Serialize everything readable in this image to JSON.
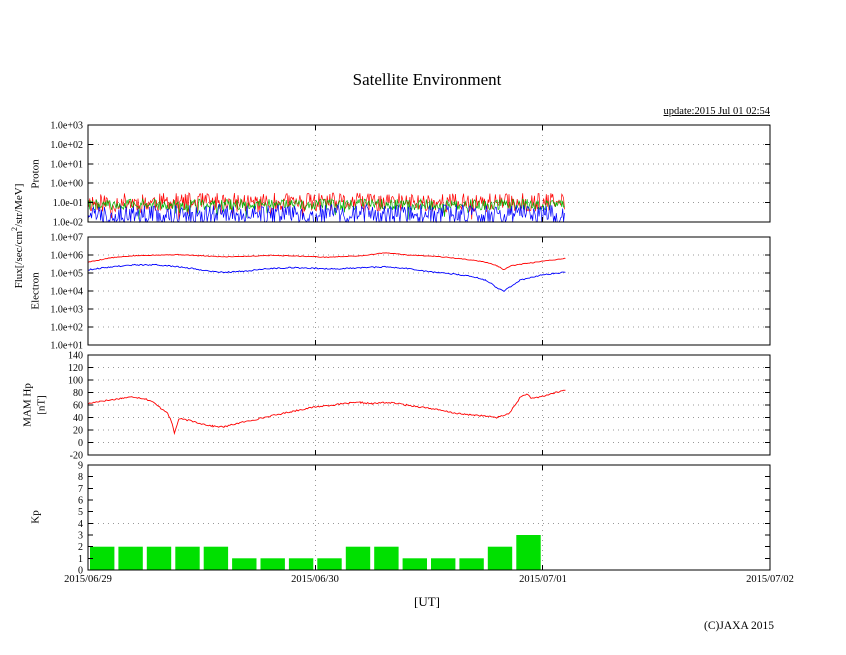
{
  "page": {
    "title": "Satellite Environment",
    "update_text": "update:2015 Jul 01 02:54",
    "copyright": "(C)JAXA 2015",
    "x_axis_title": "[UT]"
  },
  "labels": {
    "flux_pre": "Flux[/sec/cm",
    "flux_sup": "2",
    "flux_post": "/str/MeV]",
    "proton": "Proton",
    "electron": "Electron",
    "mam_line1": "MAM Hp",
    "mam_line2": "[nT]",
    "kp": "Kp"
  },
  "x_axis": {
    "tick_labels": [
      "2015/06/29",
      "2015/06/30",
      "2015/07/01",
      "2015/07/02"
    ],
    "span_days": 3,
    "gridline_days": [
      1,
      2
    ]
  },
  "chart_data": [
    {
      "id": "proton",
      "type": "line",
      "panel_label": "Proton",
      "yscale": "log",
      "ylim": [
        0.01,
        1000
      ],
      "ytick_values": [
        1000,
        100,
        10,
        1,
        0.1,
        0.01
      ],
      "ytick_labels": [
        "1.0e+03",
        "1.0e+02",
        "1.0e+01",
        "1.0e+00",
        "1.0e-01",
        "1.0e-02"
      ],
      "grid_values": [
        100,
        10,
        1,
        0.1
      ],
      "series": [
        {
          "name": "proton-red",
          "color": "#ff0000",
          "style": "noise",
          "x_start": 0,
          "x_end": 2.1,
          "center_log": -1.0,
          "noise_log": 0.5,
          "seed": 11
        },
        {
          "name": "proton-green",
          "color": "#00b400",
          "style": "noise",
          "x_start": 0,
          "x_end": 2.1,
          "center_log": -1.1,
          "noise_log": 0.28,
          "seed": 22
        },
        {
          "name": "proton-blue",
          "color": "#0000ff",
          "style": "noise",
          "x_start": 0,
          "x_end": 2.1,
          "center_log": -1.6,
          "noise_log": 0.5,
          "seed": 33
        }
      ]
    },
    {
      "id": "electron",
      "type": "line",
      "panel_label": "Electron",
      "yscale": "log",
      "ylim": [
        10,
        10000000
      ],
      "ytick_values": [
        10000000,
        1000000,
        100000,
        10000,
        1000,
        100,
        10
      ],
      "ytick_labels": [
        "1.0e+07",
        "1.0e+06",
        "1.0e+05",
        "1.0e+04",
        "1.0e+03",
        "1.0e+02",
        "1.0e+01"
      ],
      "grid_values": [
        1000000,
        100000,
        10000,
        1000,
        100
      ],
      "series": [
        {
          "name": "electron-red",
          "color": "#ff0000",
          "style": "points",
          "wiggle": 0.02,
          "seed": 5,
          "points": [
            [
              0,
              400000
            ],
            [
              0.1,
              700000
            ],
            [
              0.2,
              900000
            ],
            [
              0.3,
              1000000
            ],
            [
              0.4,
              1050000
            ],
            [
              0.5,
              900000
            ],
            [
              0.6,
              800000
            ],
            [
              0.7,
              850000
            ],
            [
              0.8,
              950000
            ],
            [
              0.9,
              900000
            ],
            [
              1.0,
              800000
            ],
            [
              1.05,
              750000
            ],
            [
              1.1,
              800000
            ],
            [
              1.2,
              900000
            ],
            [
              1.3,
              1300000
            ],
            [
              1.35,
              1200000
            ],
            [
              1.4,
              1000000
            ],
            [
              1.5,
              900000
            ],
            [
              1.6,
              700000
            ],
            [
              1.7,
              500000
            ],
            [
              1.75,
              400000
            ],
            [
              1.8,
              250000
            ],
            [
              1.83,
              150000
            ],
            [
              1.86,
              250000
            ],
            [
              1.9,
              300000
            ],
            [
              2.0,
              450000
            ],
            [
              2.1,
              650000
            ]
          ]
        },
        {
          "name": "electron-blue",
          "color": "#0000ff",
          "style": "points",
          "wiggle": 0.035,
          "seed": 9,
          "points": [
            [
              0,
              150000
            ],
            [
              0.1,
              220000
            ],
            [
              0.2,
              280000
            ],
            [
              0.3,
              280000
            ],
            [
              0.4,
              220000
            ],
            [
              0.5,
              150000
            ],
            [
              0.55,
              120000
            ],
            [
              0.6,
              110000
            ],
            [
              0.7,
              130000
            ],
            [
              0.8,
              180000
            ],
            [
              0.9,
              200000
            ],
            [
              1.0,
              180000
            ],
            [
              1.1,
              170000
            ],
            [
              1.2,
              200000
            ],
            [
              1.3,
              220000
            ],
            [
              1.4,
              180000
            ],
            [
              1.5,
              120000
            ],
            [
              1.6,
              90000
            ],
            [
              1.7,
              60000
            ],
            [
              1.75,
              40000
            ],
            [
              1.8,
              15000
            ],
            [
              1.83,
              10000
            ],
            [
              1.86,
              18000
            ],
            [
              1.9,
              40000
            ],
            [
              2.0,
              80000
            ],
            [
              2.1,
              110000
            ]
          ]
        }
      ]
    },
    {
      "id": "mam-hp",
      "type": "line",
      "panel_label": "MAM Hp [nT]",
      "yscale": "linear",
      "ylim": [
        -20,
        140
      ],
      "ytick_values": [
        140,
        120,
        100,
        80,
        60,
        40,
        20,
        0,
        -20
      ],
      "ytick_labels": [
        "140",
        "120",
        "100",
        "80",
        "60",
        "40",
        "20",
        "0",
        "-20"
      ],
      "grid_values": [
        120,
        100,
        80,
        60,
        40,
        20,
        0
      ],
      "series": [
        {
          "name": "hp-red",
          "color": "#ff0000",
          "style": "points",
          "wiggle": 1.2,
          "seed": 17,
          "points": [
            [
              0,
              62
            ],
            [
              0.05,
              66
            ],
            [
              0.1,
              68
            ],
            [
              0.15,
              71
            ],
            [
              0.2,
              73
            ],
            [
              0.25,
              70
            ],
            [
              0.28,
              66
            ],
            [
              0.32,
              55
            ],
            [
              0.35,
              48
            ],
            [
              0.37,
              30
            ],
            [
              0.38,
              15
            ],
            [
              0.4,
              38
            ],
            [
              0.45,
              35
            ],
            [
              0.5,
              30
            ],
            [
              0.55,
              26
            ],
            [
              0.6,
              25
            ],
            [
              0.65,
              30
            ],
            [
              0.7,
              34
            ],
            [
              0.8,
              42
            ],
            [
              0.9,
              50
            ],
            [
              1.0,
              57
            ],
            [
              1.1,
              61
            ],
            [
              1.15,
              63
            ],
            [
              1.2,
              64
            ],
            [
              1.25,
              62
            ],
            [
              1.3,
              64
            ],
            [
              1.35,
              63
            ],
            [
              1.4,
              60
            ],
            [
              1.5,
              55
            ],
            [
              1.6,
              48
            ],
            [
              1.65,
              45
            ],
            [
              1.7,
              44
            ],
            [
              1.75,
              42
            ],
            [
              1.8,
              40
            ],
            [
              1.85,
              46
            ],
            [
              1.88,
              60
            ],
            [
              1.9,
              72
            ],
            [
              1.93,
              78
            ],
            [
              1.95,
              70
            ],
            [
              2.0,
              74
            ],
            [
              2.05,
              79
            ],
            [
              2.1,
              84
            ]
          ]
        }
      ]
    },
    {
      "id": "kp",
      "type": "bar",
      "panel_label": "Kp",
      "yscale": "linear",
      "ylim": [
        0,
        9
      ],
      "ytick_values": [
        9,
        8,
        7,
        6,
        5,
        4,
        3,
        2,
        1,
        0
      ],
      "ytick_labels": [
        "9",
        "8",
        "7",
        "6",
        "5",
        "4",
        "3",
        "2",
        "1",
        "0"
      ],
      "grid_values": [
        4
      ],
      "bar_color": "#00e000",
      "bar_interval_days": 0.125,
      "values": [
        2,
        2,
        2,
        2,
        2,
        1,
        1,
        1,
        1,
        2,
        2,
        1,
        1,
        1,
        2,
        3
      ]
    }
  ]
}
